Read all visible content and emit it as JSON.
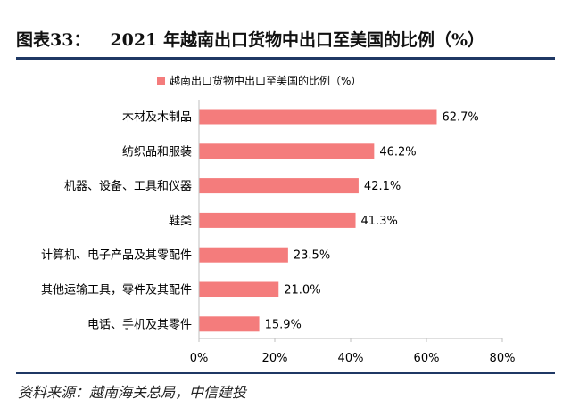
{
  "header": {
    "figure_no": "图表33：",
    "title": "2021 年越南出口货物中出口至美国的比例（%）"
  },
  "footer": {
    "source": "资料来源：越南海关总局，中信建投"
  },
  "colors": {
    "bar": "#f47c7c",
    "rule": "#1f3864",
    "axis": "#bfbfbf"
  },
  "chart_data": {
    "type": "bar",
    "orientation": "horizontal",
    "categories": [
      "木材及木制品",
      "纺织品和服装",
      "机器、设备、工具和仪器",
      "鞋类",
      "计算机、电子产品及其零配件",
      "其他运输工具，零件及其配件",
      "电话、手机及其零件"
    ],
    "series": [
      {
        "name": "越南出口货物中出口至美国的比例（%）",
        "values": [
          62.7,
          46.2,
          42.1,
          41.3,
          23.5,
          21.0,
          15.9
        ]
      }
    ],
    "value_labels": [
      "62.7%",
      "46.2%",
      "42.1%",
      "41.3%",
      "23.5%",
      "21.0%",
      "15.9%"
    ],
    "xlim": [
      0,
      80
    ],
    "xticks": [
      0,
      20,
      40,
      60,
      80
    ],
    "xtick_labels": [
      "0%",
      "20%",
      "40%",
      "60%",
      "80%"
    ],
    "grid": false,
    "legend_position": "top"
  }
}
